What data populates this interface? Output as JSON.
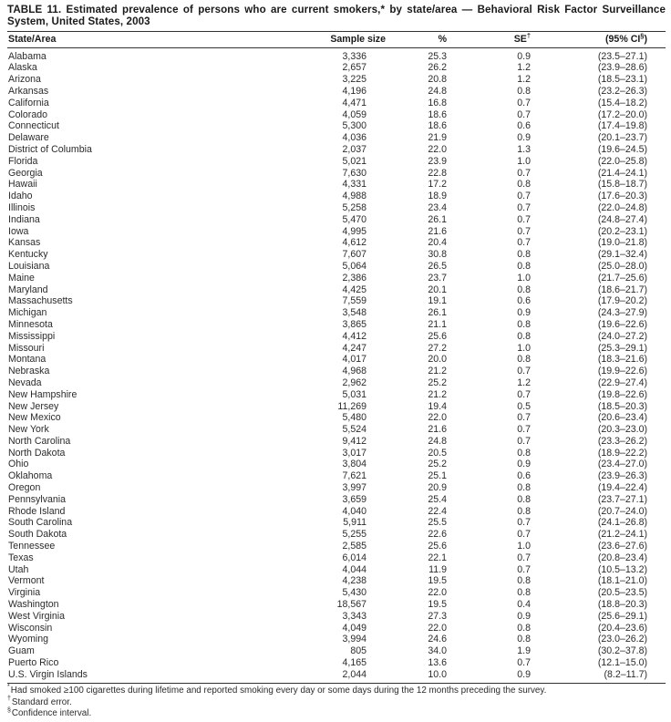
{
  "title": "TABLE 11. Estimated prevalence of persons who are current smokers,* by state/area — Behavioral Risk Factor Surveillance System, United States, 2003",
  "table": {
    "headers": {
      "state": "State/Area",
      "sample": "Sample size",
      "pct": "%",
      "se": "SE",
      "se_sup": "†",
      "ci": "(95% CI",
      "ci_sup": "§",
      "ci_close": ")"
    },
    "rows": [
      [
        "Alabama",
        "3,336",
        "25.3",
        "0.9",
        "(23.5–27.1)"
      ],
      [
        "Alaska",
        "2,657",
        "26.2",
        "1.2",
        "(23.9–28.6)"
      ],
      [
        "Arizona",
        "3,225",
        "20.8",
        "1.2",
        "(18.5–23.1)"
      ],
      [
        "Arkansas",
        "4,196",
        "24.8",
        "0.8",
        "(23.2–26.3)"
      ],
      [
        "California",
        "4,471",
        "16.8",
        "0.7",
        "(15.4–18.2)"
      ],
      [
        "Colorado",
        "4,059",
        "18.6",
        "0.7",
        "(17.2–20.0)"
      ],
      [
        "Connecticut",
        "5,300",
        "18.6",
        "0.6",
        "(17.4–19.8)"
      ],
      [
        "Delaware",
        "4,036",
        "21.9",
        "0.9",
        "(20.1–23.7)"
      ],
      [
        "District of Columbia",
        "2,037",
        "22.0",
        "1.3",
        "(19.6–24.5)"
      ],
      [
        "Florida",
        "5,021",
        "23.9",
        "1.0",
        "(22.0–25.8)"
      ],
      [
        "Georgia",
        "7,630",
        "22.8",
        "0.7",
        "(21.4–24.1)"
      ],
      [
        "Hawaii",
        "4,331",
        "17.2",
        "0.8",
        "(15.8–18.7)"
      ],
      [
        "Idaho",
        "4,988",
        "18.9",
        "0.7",
        "(17.6–20.3)"
      ],
      [
        "Illinois",
        "5,258",
        "23.4",
        "0.7",
        "(22.0–24.8)"
      ],
      [
        "Indiana",
        "5,470",
        "26.1",
        "0.7",
        "(24.8–27.4)"
      ],
      [
        "Iowa",
        "4,995",
        "21.6",
        "0.7",
        "(20.2–23.1)"
      ],
      [
        "Kansas",
        "4,612",
        "20.4",
        "0.7",
        "(19.0–21.8)"
      ],
      [
        "Kentucky",
        "7,607",
        "30.8",
        "0.8",
        "(29.1–32.4)"
      ],
      [
        "Louisiana",
        "5,064",
        "26.5",
        "0.8",
        "(25.0–28.0)"
      ],
      [
        "Maine",
        "2,386",
        "23.7",
        "1.0",
        "(21.7–25.6)"
      ],
      [
        "Maryland",
        "4,425",
        "20.1",
        "0.8",
        "(18.6–21.7)"
      ],
      [
        "Massachusetts",
        "7,559",
        "19.1",
        "0.6",
        "(17.9–20.2)"
      ],
      [
        "Michigan",
        "3,548",
        "26.1",
        "0.9",
        "(24.3–27.9)"
      ],
      [
        "Minnesota",
        "3,865",
        "21.1",
        "0.8",
        "(19.6–22.6)"
      ],
      [
        "Mississippi",
        "4,412",
        "25.6",
        "0.8",
        "(24.0–27.2)"
      ],
      [
        "Missouri",
        "4,247",
        "27.2",
        "1.0",
        "(25.3–29.1)"
      ],
      [
        "Montana",
        "4,017",
        "20.0",
        "0.8",
        "(18.3–21.6)"
      ],
      [
        "Nebraska",
        "4,968",
        "21.2",
        "0.7",
        "(19.9–22.6)"
      ],
      [
        "Nevada",
        "2,962",
        "25.2",
        "1.2",
        "(22.9–27.4)"
      ],
      [
        "New Hampshire",
        "5,031",
        "21.2",
        "0.7",
        "(19.8–22.6)"
      ],
      [
        "New Jersey",
        "11,269",
        "19.4",
        "0.5",
        "(18.5–20.3)"
      ],
      [
        "New Mexico",
        "5,480",
        "22.0",
        "0.7",
        "(20.6–23.4)"
      ],
      [
        "New York",
        "5,524",
        "21.6",
        "0.7",
        "(20.3–23.0)"
      ],
      [
        "North Carolina",
        "9,412",
        "24.8",
        "0.7",
        "(23.3–26.2)"
      ],
      [
        "North Dakota",
        "3,017",
        "20.5",
        "0.8",
        "(18.9–22.2)"
      ],
      [
        "Ohio",
        "3,804",
        "25.2",
        "0.9",
        "(23.4–27.0)"
      ],
      [
        "Oklahoma",
        "7,621",
        "25.1",
        "0.6",
        "(23.9–26.3)"
      ],
      [
        "Oregon",
        "3,997",
        "20.9",
        "0.8",
        "(19.4–22.4)"
      ],
      [
        "Pennsylvania",
        "3,659",
        "25.4",
        "0.8",
        "(23.7–27.1)"
      ],
      [
        "Rhode Island",
        "4,040",
        "22.4",
        "0.8",
        "(20.7–24.0)"
      ],
      [
        "South Carolina",
        "5,911",
        "25.5",
        "0.7",
        "(24.1–26.8)"
      ],
      [
        "South Dakota",
        "5,255",
        "22.6",
        "0.7",
        "(21.2–24.1)"
      ],
      [
        "Tennessee",
        "2,585",
        "25.6",
        "1.0",
        "(23.6–27.6)"
      ],
      [
        "Texas",
        "6,014",
        "22.1",
        "0.7",
        "(20.8–23.4)"
      ],
      [
        "Utah",
        "4,044",
        "11.9",
        "0.7",
        "(10.5–13.2)"
      ],
      [
        "Vermont",
        "4,238",
        "19.5",
        "0.8",
        "(18.1–21.0)"
      ],
      [
        "Virginia",
        "5,430",
        "22.0",
        "0.8",
        "(20.5–23.5)"
      ],
      [
        "Washington",
        "18,567",
        "19.5",
        "0.4",
        "(18.8–20.3)"
      ],
      [
        "West Virginia",
        "3,343",
        "27.3",
        "0.9",
        "(25.6–29.1)"
      ],
      [
        "Wisconsin",
        "4,049",
        "22.0",
        "0.8",
        "(20.4–23.6)"
      ],
      [
        "Wyoming",
        "3,994",
        "24.6",
        "0.8",
        "(23.0–26.2)"
      ],
      [
        "Guam",
        "805",
        "34.0",
        "1.9",
        "(30.2–37.8)"
      ],
      [
        "Puerto Rico",
        "4,165",
        "13.6",
        "0.7",
        "(12.1–15.0)"
      ],
      [
        "U.S. Virgin Islands",
        "2,044",
        "10.0",
        "0.9",
        "(8.2–11.7)"
      ]
    ]
  },
  "footnotes": [
    {
      "marker": "*",
      "text": "Had smoked ≥100 cigarettes during lifetime and reported smoking every day or some days during the 12 months preceding the survey."
    },
    {
      "marker": "†",
      "text": "Standard error."
    },
    {
      "marker": "§",
      "text": "Confidence interval."
    }
  ]
}
